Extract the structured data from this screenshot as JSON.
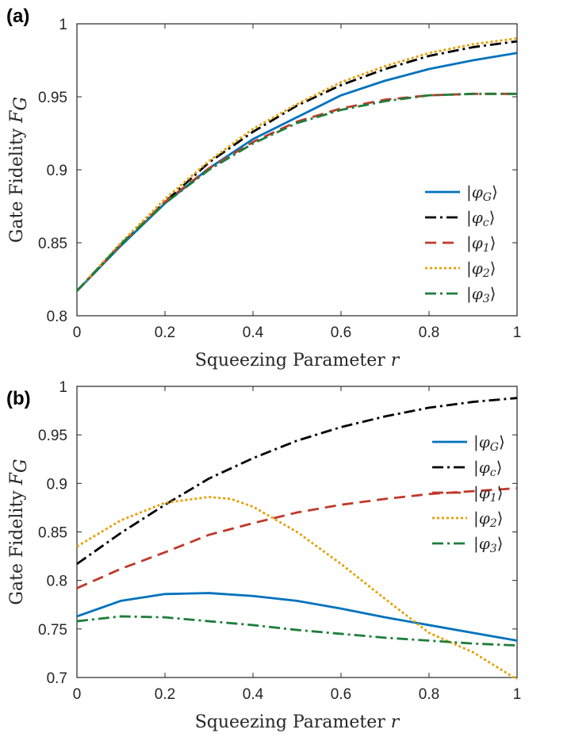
{
  "chart_data": [
    {
      "type": "line",
      "panel_label": "(a)",
      "xlabel": "Squeezing Parameter",
      "xlabel_symbol": "r",
      "ylabel": "Gate Fidelity",
      "ylabel_symbol": "F",
      "ylabel_symbol_sub": "G",
      "xlim": [
        0,
        1
      ],
      "ylim": [
        0.8,
        1
      ],
      "xticks": [
        0,
        0.2,
        0.4,
        0.6,
        0.8,
        1
      ],
      "xtick_labels": [
        "0",
        "0.2",
        "0.4",
        "0.6",
        "0.8",
        "1"
      ],
      "yticks": [
        0.8,
        0.85,
        0.9,
        0.95,
        1
      ],
      "ytick_labels": [
        "0.8",
        "0.85",
        "0.9",
        "0.95",
        "1"
      ],
      "grid": false,
      "legend_position": "right",
      "series": [
        {
          "name": "|φG⟩",
          "base": "|φ",
          "sub": "G",
          "end": "⟩",
          "color": "#0072BD",
          "dash": "solid",
          "x": [
            0,
            0.1,
            0.2,
            0.3,
            0.4,
            0.5,
            0.6,
            0.7,
            0.8,
            0.9,
            1.0
          ],
          "y": [
            0.817,
            0.848,
            0.877,
            0.901,
            0.921,
            0.936,
            0.951,
            0.961,
            0.969,
            0.975,
            0.98
          ]
        },
        {
          "name": "|φc⟩",
          "base": "|φ",
          "sub": "c",
          "end": "⟩",
          "color": "#000000",
          "dash": "dashdot",
          "x": [
            0,
            0.1,
            0.2,
            0.3,
            0.4,
            0.5,
            0.6,
            0.7,
            0.8,
            0.9,
            1.0
          ],
          "y": [
            0.817,
            0.849,
            0.878,
            0.905,
            0.926,
            0.944,
            0.958,
            0.969,
            0.978,
            0.984,
            0.988
          ]
        },
        {
          "name": "|φ1⟩",
          "base": "|φ",
          "sub": "1",
          "end": "⟩",
          "color": "#C0392B",
          "dash": "dashed",
          "x": [
            0,
            0.1,
            0.2,
            0.3,
            0.4,
            0.5,
            0.6,
            0.7,
            0.8,
            0.9,
            1.0
          ],
          "y": [
            0.817,
            0.849,
            0.878,
            0.901,
            0.919,
            0.933,
            0.942,
            0.948,
            0.951,
            0.952,
            0.952
          ]
        },
        {
          "name": "|φ2⟩",
          "base": "|φ",
          "sub": "2",
          "end": "⟩",
          "color": "#E69F00",
          "dash": "dotted",
          "x": [
            0,
            0.1,
            0.2,
            0.3,
            0.4,
            0.5,
            0.6,
            0.7,
            0.8,
            0.9,
            1.0
          ],
          "y": [
            0.817,
            0.85,
            0.88,
            0.906,
            0.928,
            0.945,
            0.96,
            0.971,
            0.98,
            0.986,
            0.99
          ]
        },
        {
          "name": "|φ3⟩",
          "base": "|φ",
          "sub": "3",
          "end": "⟩",
          "color": "#1E7D3A",
          "dash": "dashdot",
          "x": [
            0,
            0.1,
            0.2,
            0.3,
            0.4,
            0.5,
            0.6,
            0.7,
            0.8,
            0.9,
            1.0
          ],
          "y": [
            0.817,
            0.849,
            0.877,
            0.9,
            0.918,
            0.932,
            0.941,
            0.947,
            0.951,
            0.952,
            0.952
          ]
        }
      ]
    },
    {
      "type": "line",
      "panel_label": "(b)",
      "xlabel": "Squeezing Parameter",
      "xlabel_symbol": "r",
      "ylabel": "Gate Fidelity",
      "ylabel_symbol": "F",
      "ylabel_symbol_sub": "G",
      "xlim": [
        0,
        1
      ],
      "ylim": [
        0.7,
        1
      ],
      "xticks": [
        0,
        0.2,
        0.4,
        0.6,
        0.8,
        1
      ],
      "xtick_labels": [
        "0",
        "0.2",
        "0.4",
        "0.6",
        "0.8",
        "1"
      ],
      "yticks": [
        0.7,
        0.75,
        0.8,
        0.85,
        0.9,
        0.95,
        1
      ],
      "ytick_labels": [
        "0.7",
        "0.75",
        "0.8",
        "0.85",
        "0.9",
        "0.95",
        "1"
      ],
      "grid": false,
      "legend_position": "right",
      "series": [
        {
          "name": "|φG⟩",
          "base": "|φ",
          "sub": "G",
          "end": "⟩",
          "color": "#0072BD",
          "dash": "solid",
          "x": [
            0,
            0.1,
            0.2,
            0.3,
            0.4,
            0.5,
            0.6,
            0.7,
            0.8,
            0.9,
            1.0
          ],
          "y": [
            0.763,
            0.779,
            0.786,
            0.787,
            0.784,
            0.779,
            0.771,
            0.762,
            0.754,
            0.746,
            0.738
          ]
        },
        {
          "name": "|φc⟩",
          "base": "|φ",
          "sub": "c",
          "end": "⟩",
          "color": "#000000",
          "dash": "dashdot",
          "x": [
            0,
            0.1,
            0.2,
            0.3,
            0.4,
            0.5,
            0.6,
            0.7,
            0.8,
            0.9,
            1.0
          ],
          "y": [
            0.817,
            0.849,
            0.878,
            0.905,
            0.926,
            0.944,
            0.958,
            0.969,
            0.978,
            0.984,
            0.988
          ]
        },
        {
          "name": "|φ1⟩",
          "base": "|φ",
          "sub": "1",
          "end": "⟩",
          "color": "#C0392B",
          "dash": "dashed",
          "x": [
            0,
            0.1,
            0.2,
            0.3,
            0.4,
            0.5,
            0.6,
            0.7,
            0.8,
            0.9,
            1.0
          ],
          "y": [
            0.792,
            0.812,
            0.829,
            0.847,
            0.859,
            0.87,
            0.878,
            0.884,
            0.889,
            0.892,
            0.895
          ]
        },
        {
          "name": "|φ2⟩",
          "base": "|φ",
          "sub": "2",
          "end": "⟩",
          "color": "#E69F00",
          "dash": "dotted",
          "x": [
            0,
            0.1,
            0.2,
            0.3,
            0.35,
            0.4,
            0.5,
            0.6,
            0.7,
            0.8,
            0.9,
            1.0
          ],
          "y": [
            0.835,
            0.862,
            0.88,
            0.886,
            0.884,
            0.876,
            0.85,
            0.817,
            0.781,
            0.746,
            0.726,
            0.698
          ]
        },
        {
          "name": "|φ3⟩",
          "base": "|φ",
          "sub": "3",
          "end": "⟩",
          "color": "#1E7D3A",
          "dash": "dashdot",
          "x": [
            0,
            0.1,
            0.2,
            0.3,
            0.4,
            0.5,
            0.6,
            0.7,
            0.8,
            0.9,
            1.0
          ],
          "y": [
            0.758,
            0.763,
            0.762,
            0.758,
            0.754,
            0.749,
            0.745,
            0.741,
            0.738,
            0.735,
            0.733
          ]
        }
      ]
    }
  ]
}
